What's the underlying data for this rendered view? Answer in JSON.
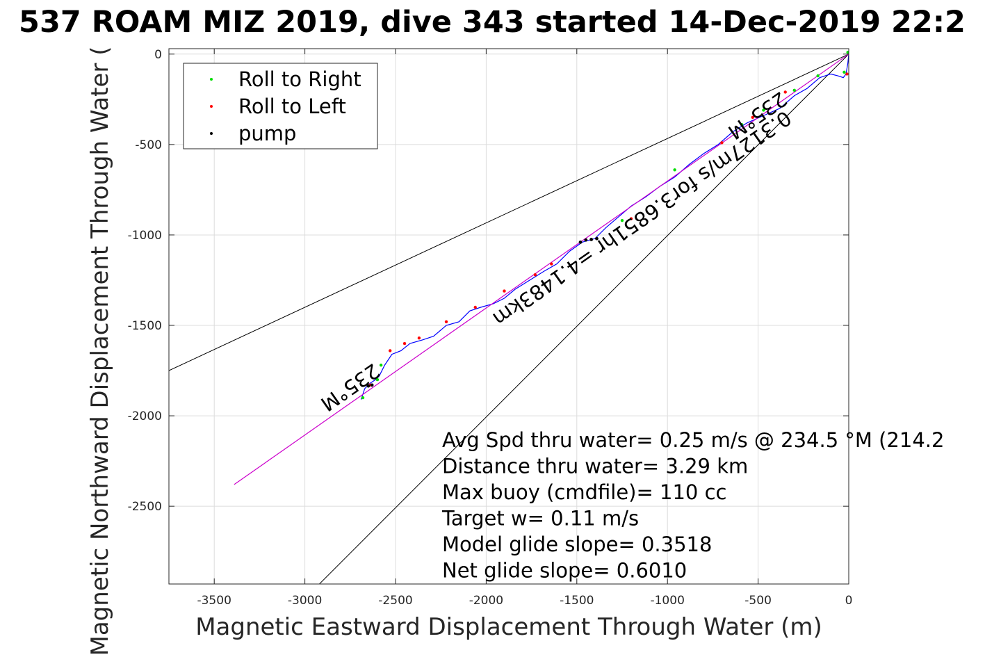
{
  "chart_data": {
    "type": "line",
    "title": "537 ROAM MIZ 2019, dive 343 started 14-Dec-2019 22:2",
    "xlabel": "Magnetic Eastward Displacement Through Water (m)",
    "ylabel": "Magnetic Northward Displacement Through Water (",
    "xlim": [
      -3750,
      0
    ],
    "ylim": [
      -2930,
      30
    ],
    "grid": true,
    "x_ticks": [
      -3500,
      -3000,
      -2500,
      -2000,
      -1500,
      -1000,
      -500,
      0
    ],
    "y_ticks": [
      0,
      -500,
      -1000,
      -1500,
      -2000,
      -2500
    ],
    "legend": {
      "placement": "top-left",
      "entries": [
        {
          "label": "Roll to Right",
          "color": "#00dd00"
        },
        {
          "label": "Roll to Left",
          "color": "#ff0000"
        },
        {
          "label": "pump",
          "color": "#000000"
        }
      ]
    },
    "annotations": {
      "heading_label": "235°M",
      "speed_label": "0.3127m/s for3.6851hr =4.1483km"
    },
    "stats": [
      "Avg Spd thru water=  0.25 m/s @ 234.5 °M (214.2",
      "Distance thru water=  3.29 km",
      "Max buoy (cmdfile)= 110 cc",
      "Target w= 0.11 m/s",
      "Model glide slope= 0.3518",
      "Net glide slope= 0.6010"
    ],
    "series": [
      {
        "color": "#0000ff",
        "x": [
          0,
          -5,
          -15,
          -30,
          -60,
          -100,
          -160,
          -230,
          -300,
          -380,
          -470,
          -560,
          -640,
          -720,
          -800,
          -880,
          -960,
          -1040,
          -1120,
          -1200,
          -1270,
          -1340,
          -1400,
          -1470,
          -1540,
          -1610,
          -1680,
          -1760,
          -1840,
          -1900,
          -1960,
          -2030,
          -2090,
          -2150,
          -2220,
          -2290,
          -2350,
          -2420,
          -2470,
          -2520,
          -2560,
          -2590,
          -2610,
          -2640,
          -2670,
          -2690
        ],
        "y": [
          0,
          -50,
          -110,
          -130,
          -120,
          -110,
          -130,
          -190,
          -230,
          -300,
          -340,
          -380,
          -430,
          -500,
          -550,
          -610,
          -680,
          -730,
          -790,
          -840,
          -900,
          -960,
          -1020,
          -1040,
          -1090,
          -1160,
          -1200,
          -1250,
          -1300,
          -1350,
          -1380,
          -1400,
          -1420,
          -1480,
          -1500,
          -1560,
          -1580,
          -1600,
          -1640,
          -1660,
          -1720,
          -1780,
          -1800,
          -1820,
          -1850,
          -1910
        ]
      },
      {
        "color": "#cc00cc",
        "x": [
          0,
          -3390
        ],
        "y": [
          0,
          -2380
        ]
      }
    ],
    "bounds": [
      {
        "color": "#000000",
        "x": [
          0,
          -3750
        ],
        "y": [
          0,
          -1750
        ]
      },
      {
        "color": "#000000",
        "x": [
          0,
          -2920
        ],
        "y": [
          0,
          -2930
        ]
      }
    ],
    "markers": {
      "right": {
        "x": [
          -5,
          -25,
          -170,
          -300,
          -470,
          -590,
          -960,
          -1250,
          -2580,
          -2600,
          -2680
        ],
        "y": [
          10,
          -100,
          -120,
          -200,
          -310,
          -390,
          -640,
          -920,
          -1720,
          -1800,
          -1900
        ]
      },
      "left": {
        "x": [
          -10,
          -350,
          -530,
          -700,
          -1200,
          -1640,
          -1730,
          -1900,
          -2060,
          -2220,
          -2370,
          -2450,
          -2530,
          -2640
        ],
        "y": [
          -110,
          -210,
          -350,
          -490,
          -910,
          -1160,
          -1220,
          -1310,
          -1400,
          -1480,
          -1570,
          -1600,
          -1640,
          -1830
        ]
      },
      "pump": {
        "x": [
          -1390,
          -1420,
          -1450,
          -1480,
          -2630,
          -2650
        ],
        "y": [
          -1020,
          -1025,
          -1028,
          -1040,
          -1830,
          -1835
        ]
      }
    }
  }
}
